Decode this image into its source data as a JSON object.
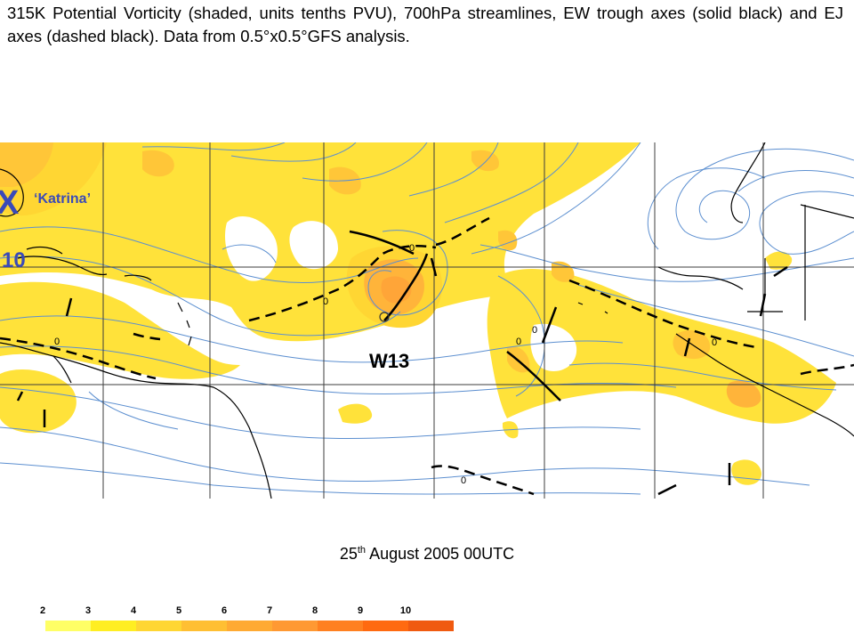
{
  "caption": "315K Potential Vorticity (shaded, units tenths PVU), 700hPa streamlines, EW trough axes (solid black) and EJ axes (dashed black). Data from 0.5°x0.5°GFS analysis.",
  "date": {
    "day": "25",
    "suffix": "th",
    "rest": "August 2005 00UTC"
  },
  "labels": {
    "storm_x": "X",
    "storm_name": "‘Katrina’",
    "storm_num": "10",
    "wave": "W13",
    "contour_zero": "0"
  },
  "legend": {
    "values": [
      "2",
      "3",
      "4",
      "5",
      "6",
      "7",
      "8",
      "9",
      "10"
    ],
    "colors": [
      "#ffffff",
      "#ffff66",
      "#ffee22",
      "#ffd633",
      "#ffbf33",
      "#ffaa33",
      "#ff9933",
      "#ff8020",
      "#ff6a10",
      "#f05a10"
    ]
  },
  "colors": {
    "grid": "#3c3c3c",
    "streamline": "#5c8fd0",
    "coast": "#000000",
    "label_blue": "#3a4ab8"
  }
}
